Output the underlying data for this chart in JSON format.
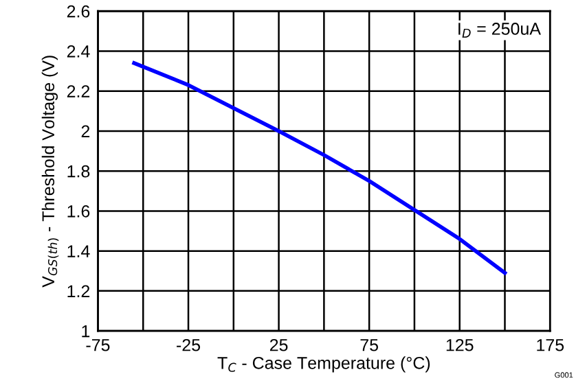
{
  "chart_data": {
    "type": "line",
    "xlabel": "T$_{C}$ - Case Temperature (°C)",
    "ylabel": "V$_{GS(th)}$ - Threshold Voltage (V)",
    "x": [
      -55,
      -25,
      0,
      25,
      50,
      75,
      100,
      125,
      150
    ],
    "series": [
      {
        "color": "#0000ff",
        "values": [
          2.34,
          2.23,
          2.115,
          2.0,
          1.88,
          1.75,
          1.605,
          1.46,
          1.29
        ]
      }
    ],
    "xlim": [
      -75,
      175
    ],
    "xticks": [
      -75,
      {
        "value": -50,
        "label": null
      },
      -25,
      {
        "value": 0,
        "label": null
      },
      25,
      {
        "value": 50,
        "label": null
      },
      75,
      {
        "value": 100,
        "label": null
      },
      125,
      {
        "value": 150,
        "label": null
      },
      175
    ],
    "ylim": [
      1,
      2.6
    ],
    "yticks": [
      1,
      1.2,
      1.4,
      1.6,
      1.8,
      2,
      2.2,
      2.4,
      2.6
    ],
    "grid": true,
    "marker": "none",
    "line_style": "solid",
    "annotations": [
      {
        "text": "I$_{D}$ = 250uA"
      },
      {
        "text": "G001"
      }
    ]
  }
}
